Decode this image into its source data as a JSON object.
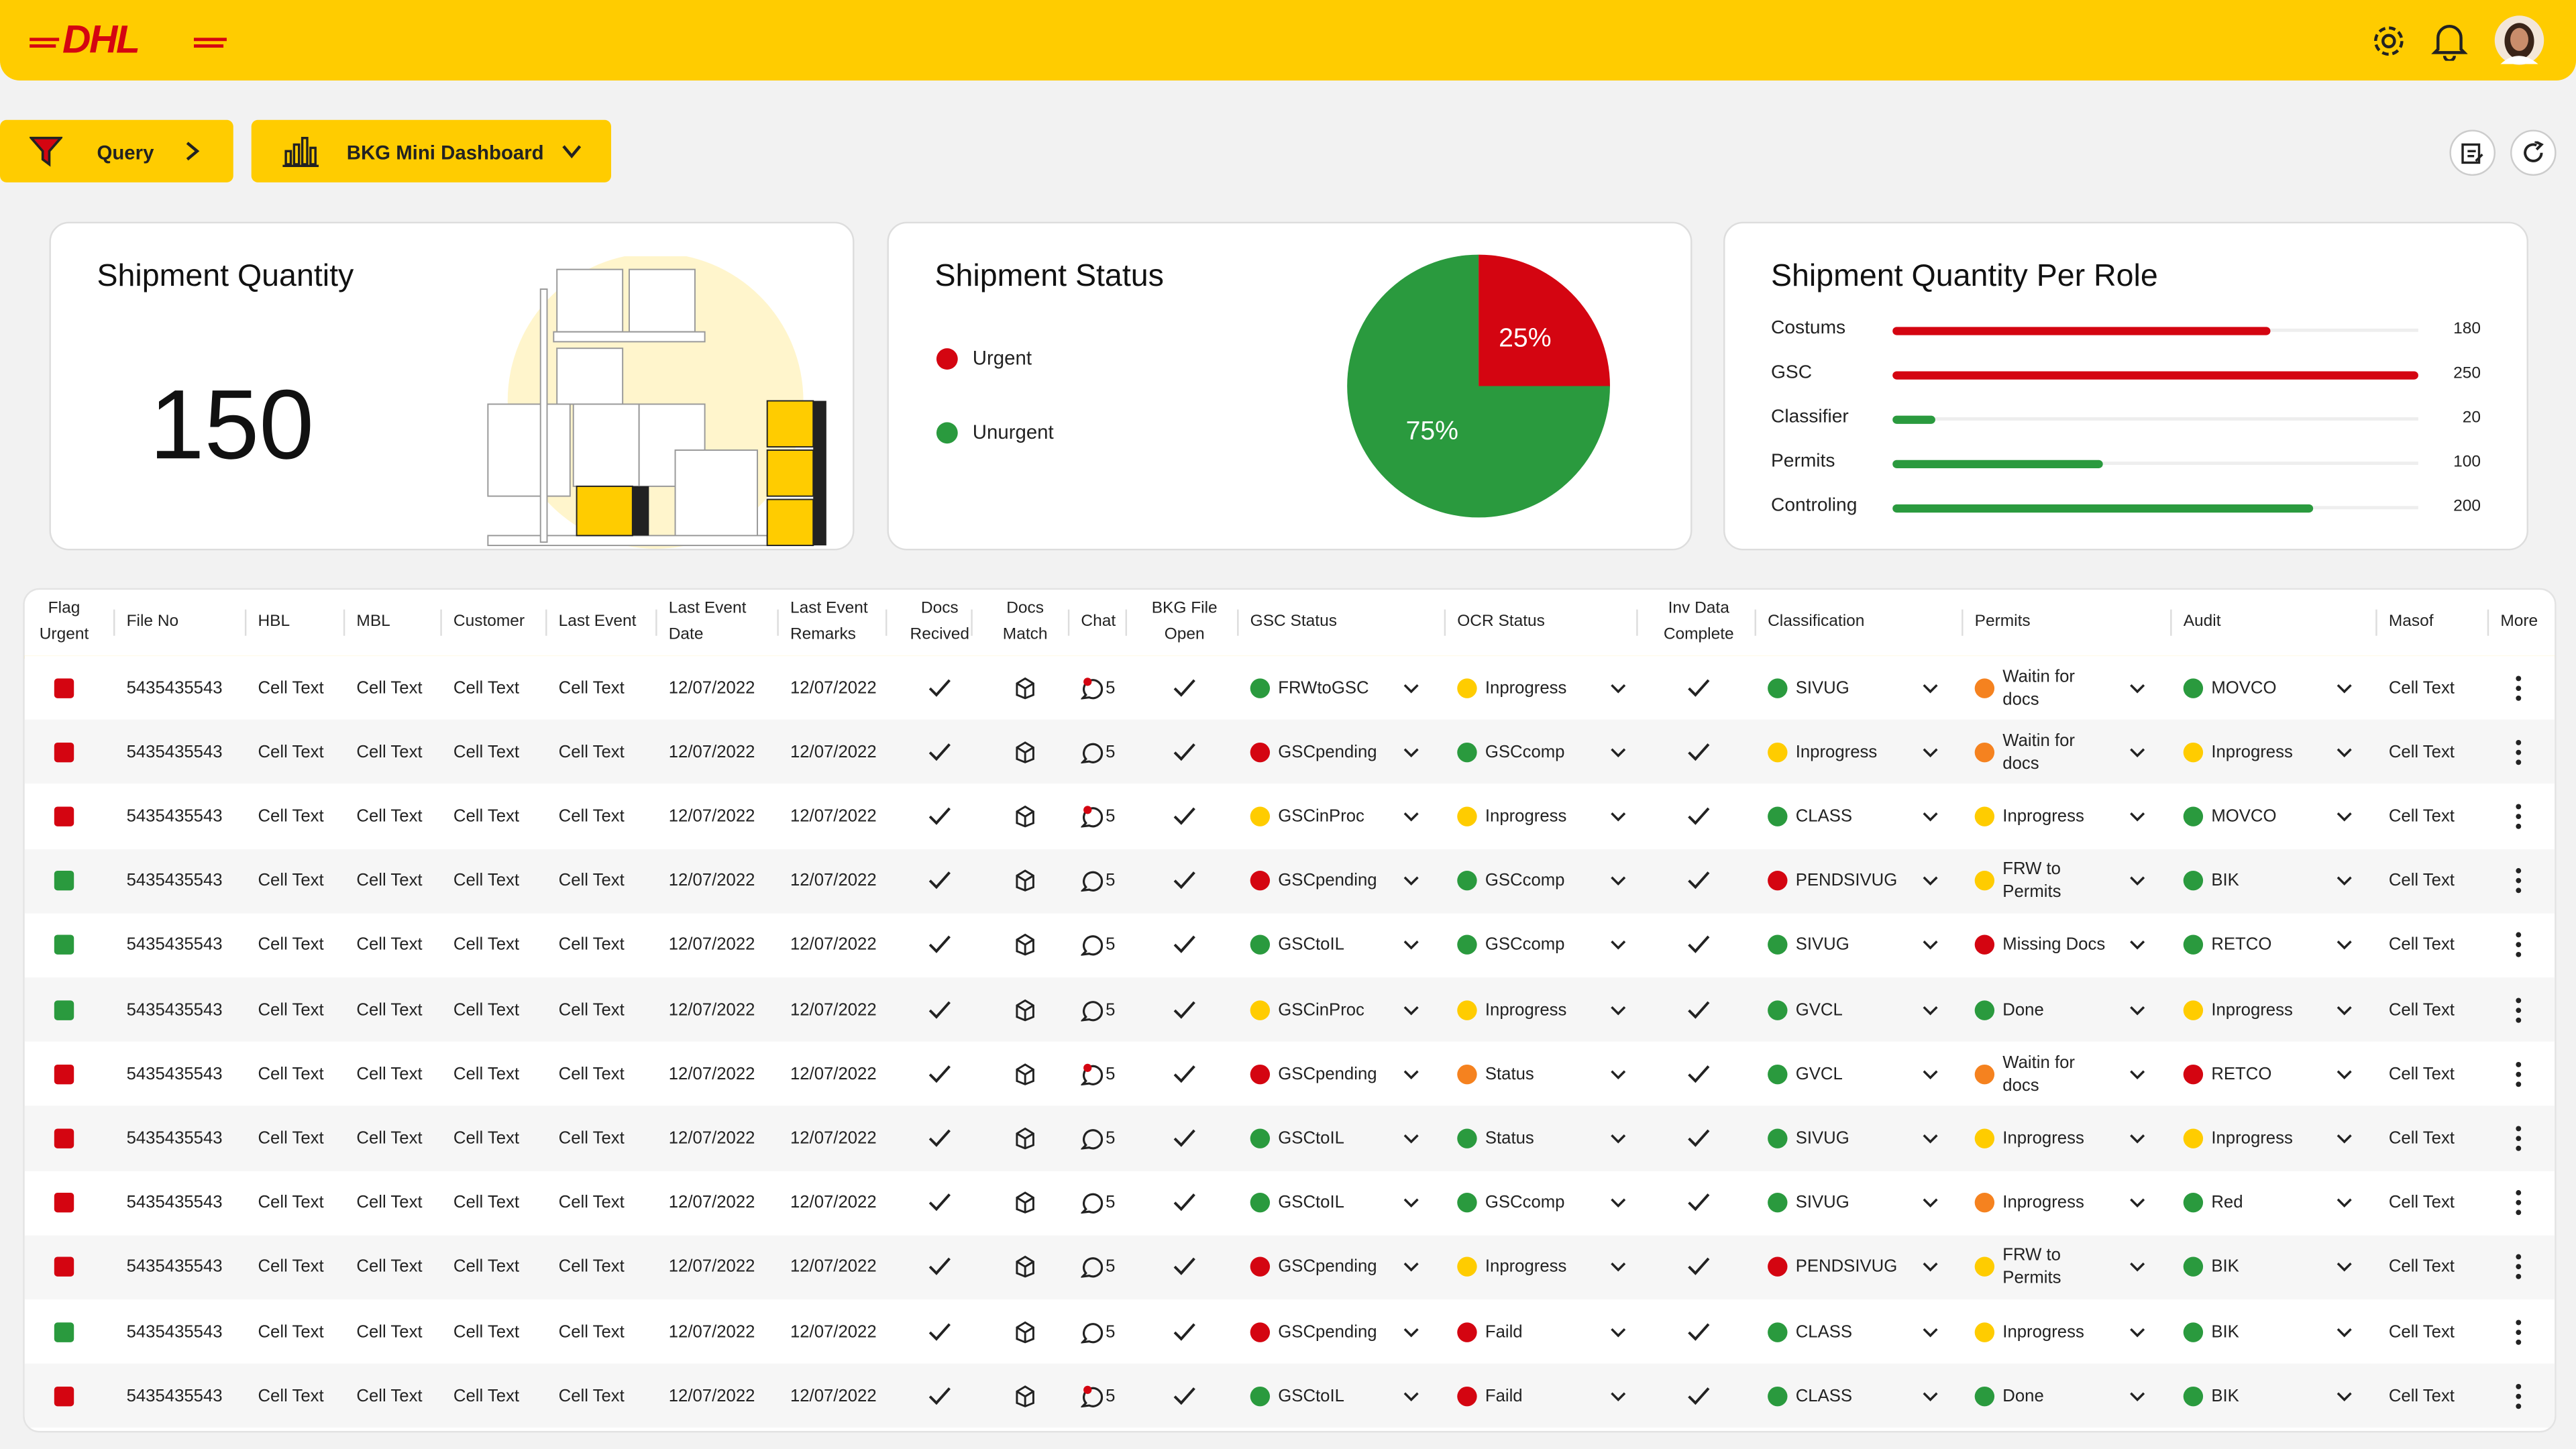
{
  "header": {
    "logo": "DHL"
  },
  "toolbar": {
    "query": "Query",
    "dashboard": "BKG Mini Dashboard"
  },
  "quantity_card": {
    "title": "Shipment Quantity",
    "value": 150
  },
  "status_card": {
    "title": "Shipment Status",
    "categories": [
      "Urgent",
      "Unurgent"
    ],
    "colors": [
      "#d40511",
      "#2a9a3e"
    ],
    "values": [
      25,
      75
    ],
    "value_labels": [
      "25%",
      "75%"
    ]
  },
  "role_card": {
    "title": "Shipment Quantity Per Role",
    "categories": [
      "Costums",
      "GSC",
      "Classifier",
      "Permits",
      "Controling"
    ],
    "values": [
      180,
      250,
      20,
      100,
      200
    ],
    "colors": [
      "#d40511",
      "#d40511",
      "#2a9a3e",
      "#2a9a3e",
      "#2a9a3e"
    ]
  },
  "table": {
    "columns": [
      "Flag Urgent",
      "File No",
      "HBL",
      "MBL",
      "Customer",
      "Last Event",
      "Last Event Date",
      "Last Event Remarks",
      "Docs Recived",
      "Docs Match",
      "Chat",
      "BKG File Open",
      "GSC Status",
      "OCR Status",
      "Inv Data Complete",
      "Classification",
      "Permits",
      "Audit",
      "Masof",
      "More"
    ],
    "rows": [
      {
        "flag": "#d40511",
        "file": "5435435543",
        "hbl": "Cell Text",
        "mbl": "Cell Text",
        "customer": "Cell Text",
        "last_event": "Cell Text",
        "date": "12/07/2022",
        "remarks": "12/07/2022",
        "chat": 5,
        "chat_alert": true,
        "gsc": {
          "label": "FRWtoGSC",
          "color": "#2a9a3e"
        },
        "ocr": {
          "label": "Inprogress",
          "color": "#ffcc00"
        },
        "cls": {
          "label": "SIVUG",
          "color": "#2a9a3e"
        },
        "permits": {
          "label": "Waitin for docs",
          "color": "#f5821f"
        },
        "audit": {
          "label": "MOVCO",
          "color": "#2a9a3e"
        },
        "masof": "Cell Text"
      },
      {
        "flag": "#d40511",
        "file": "5435435543",
        "hbl": "Cell Text",
        "mbl": "Cell Text",
        "customer": "Cell Text",
        "last_event": "Cell Text",
        "date": "12/07/2022",
        "remarks": "12/07/2022",
        "chat": 5,
        "chat_alert": false,
        "gsc": {
          "label": "GSCpending",
          "color": "#d40511"
        },
        "ocr": {
          "label": "GSCcomp",
          "color": "#2a9a3e"
        },
        "cls": {
          "label": "Inprogress",
          "color": "#ffcc00"
        },
        "permits": {
          "label": "Waitin for docs",
          "color": "#f5821f"
        },
        "audit": {
          "label": "Inprogress",
          "color": "#ffcc00"
        },
        "masof": "Cell Text"
      },
      {
        "flag": "#d40511",
        "file": "5435435543",
        "hbl": "Cell Text",
        "mbl": "Cell Text",
        "customer": "Cell Text",
        "last_event": "Cell Text",
        "date": "12/07/2022",
        "remarks": "12/07/2022",
        "chat": 5,
        "chat_alert": true,
        "gsc": {
          "label": "GSCinProc",
          "color": "#ffcc00"
        },
        "ocr": {
          "label": "Inprogress",
          "color": "#ffcc00"
        },
        "cls": {
          "label": "CLASS",
          "color": "#2a9a3e"
        },
        "permits": {
          "label": "Inprogress",
          "color": "#ffcc00"
        },
        "audit": {
          "label": "MOVCO",
          "color": "#2a9a3e"
        },
        "masof": "Cell Text"
      },
      {
        "flag": "#2a9a3e",
        "file": "5435435543",
        "hbl": "Cell Text",
        "mbl": "Cell Text",
        "customer": "Cell Text",
        "last_event": "Cell Text",
        "date": "12/07/2022",
        "remarks": "12/07/2022",
        "chat": 5,
        "chat_alert": false,
        "gsc": {
          "label": "GSCpending",
          "color": "#d40511"
        },
        "ocr": {
          "label": "GSCcomp",
          "color": "#2a9a3e"
        },
        "cls": {
          "label": "PENDSIVUG",
          "color": "#d40511"
        },
        "permits": {
          "label": "FRW to Permits",
          "color": "#ffcc00"
        },
        "audit": {
          "label": "BIK",
          "color": "#2a9a3e"
        },
        "masof": "Cell Text"
      },
      {
        "flag": "#2a9a3e",
        "file": "5435435543",
        "hbl": "Cell Text",
        "mbl": "Cell Text",
        "customer": "Cell Text",
        "last_event": "Cell Text",
        "date": "12/07/2022",
        "remarks": "12/07/2022",
        "chat": 5,
        "chat_alert": false,
        "gsc": {
          "label": "GSCtoIL",
          "color": "#2a9a3e"
        },
        "ocr": {
          "label": "GSCcomp",
          "color": "#2a9a3e"
        },
        "cls": {
          "label": "SIVUG",
          "color": "#2a9a3e"
        },
        "permits": {
          "label": "Missing Docs",
          "color": "#d40511"
        },
        "audit": {
          "label": "RETCO",
          "color": "#2a9a3e"
        },
        "masof": "Cell Text"
      },
      {
        "flag": "#2a9a3e",
        "file": "5435435543",
        "hbl": "Cell Text",
        "mbl": "Cell Text",
        "customer": "Cell Text",
        "last_event": "Cell Text",
        "date": "12/07/2022",
        "remarks": "12/07/2022",
        "chat": 5,
        "chat_alert": false,
        "gsc": {
          "label": "GSCinProc",
          "color": "#ffcc00"
        },
        "ocr": {
          "label": "Inprogress",
          "color": "#ffcc00"
        },
        "cls": {
          "label": "GVCL",
          "color": "#2a9a3e"
        },
        "permits": {
          "label": "Done",
          "color": "#2a9a3e"
        },
        "audit": {
          "label": "Inprogress",
          "color": "#ffcc00"
        },
        "masof": "Cell Text"
      },
      {
        "flag": "#d40511",
        "file": "5435435543",
        "hbl": "Cell Text",
        "mbl": "Cell Text",
        "customer": "Cell Text",
        "last_event": "Cell Text",
        "date": "12/07/2022",
        "remarks": "12/07/2022",
        "chat": 5,
        "chat_alert": true,
        "gsc": {
          "label": "GSCpending",
          "color": "#d40511"
        },
        "ocr": {
          "label": "Status",
          "color": "#f5821f"
        },
        "cls": {
          "label": "GVCL",
          "color": "#2a9a3e"
        },
        "permits": {
          "label": "Waitin for docs",
          "color": "#f5821f"
        },
        "audit": {
          "label": "RETCO",
          "color": "#d40511"
        },
        "masof": "Cell Text"
      },
      {
        "flag": "#d40511",
        "file": "5435435543",
        "hbl": "Cell Text",
        "mbl": "Cell Text",
        "customer": "Cell Text",
        "last_event": "Cell Text",
        "date": "12/07/2022",
        "remarks": "12/07/2022",
        "chat": 5,
        "chat_alert": false,
        "gsc": {
          "label": "GSCtoIL",
          "color": "#2a9a3e"
        },
        "ocr": {
          "label": "Status",
          "color": "#2a9a3e"
        },
        "cls": {
          "label": "SIVUG",
          "color": "#2a9a3e"
        },
        "permits": {
          "label": "Inprogress",
          "color": "#ffcc00"
        },
        "audit": {
          "label": "Inprogress",
          "color": "#ffcc00"
        },
        "masof": "Cell Text"
      },
      {
        "flag": "#d40511",
        "file": "5435435543",
        "hbl": "Cell Text",
        "mbl": "Cell Text",
        "customer": "Cell Text",
        "last_event": "Cell Text",
        "date": "12/07/2022",
        "remarks": "12/07/2022",
        "chat": 5,
        "chat_alert": false,
        "gsc": {
          "label": "GSCtoIL",
          "color": "#2a9a3e"
        },
        "ocr": {
          "label": "GSCcomp",
          "color": "#2a9a3e"
        },
        "cls": {
          "label": "SIVUG",
          "color": "#2a9a3e"
        },
        "permits": {
          "label": "Inprogress",
          "color": "#f5821f"
        },
        "audit": {
          "label": "Red",
          "color": "#2a9a3e"
        },
        "masof": "Cell Text"
      },
      {
        "flag": "#d40511",
        "file": "5435435543",
        "hbl": "Cell Text",
        "mbl": "Cell Text",
        "customer": "Cell Text",
        "last_event": "Cell Text",
        "date": "12/07/2022",
        "remarks": "12/07/2022",
        "chat": 5,
        "chat_alert": false,
        "gsc": {
          "label": "GSCpending",
          "color": "#d40511"
        },
        "ocr": {
          "label": "Inprogress",
          "color": "#ffcc00"
        },
        "cls": {
          "label": "PENDSIVUG",
          "color": "#d40511"
        },
        "permits": {
          "label": "FRW to Permits",
          "color": "#ffcc00"
        },
        "audit": {
          "label": "BIK",
          "color": "#2a9a3e"
        },
        "masof": "Cell Text"
      },
      {
        "flag": "#2a9a3e",
        "file": "5435435543",
        "hbl": "Cell Text",
        "mbl": "Cell Text",
        "customer": "Cell Text",
        "last_event": "Cell Text",
        "date": "12/07/2022",
        "remarks": "12/07/2022",
        "chat": 5,
        "chat_alert": false,
        "gsc": {
          "label": "GSCpending",
          "color": "#d40511"
        },
        "ocr": {
          "label": "Faild",
          "color": "#d40511"
        },
        "cls": {
          "label": "CLASS",
          "color": "#2a9a3e"
        },
        "permits": {
          "label": "Inprogress",
          "color": "#ffcc00"
        },
        "audit": {
          "label": "BIK",
          "color": "#2a9a3e"
        },
        "masof": "Cell Text"
      },
      {
        "flag": "#d40511",
        "file": "5435435543",
        "hbl": "Cell Text",
        "mbl": "Cell Text",
        "customer": "Cell Text",
        "last_event": "Cell Text",
        "date": "12/07/2022",
        "remarks": "12/07/2022",
        "chat": 5,
        "chat_alert": true,
        "gsc": {
          "label": "GSCtoIL",
          "color": "#2a9a3e"
        },
        "ocr": {
          "label": "Faild",
          "color": "#d40511"
        },
        "cls": {
          "label": "CLASS",
          "color": "#2a9a3e"
        },
        "permits": {
          "label": "Done",
          "color": "#2a9a3e"
        },
        "audit": {
          "label": "BIK",
          "color": "#2a9a3e"
        },
        "masof": "Cell Text"
      }
    ]
  }
}
